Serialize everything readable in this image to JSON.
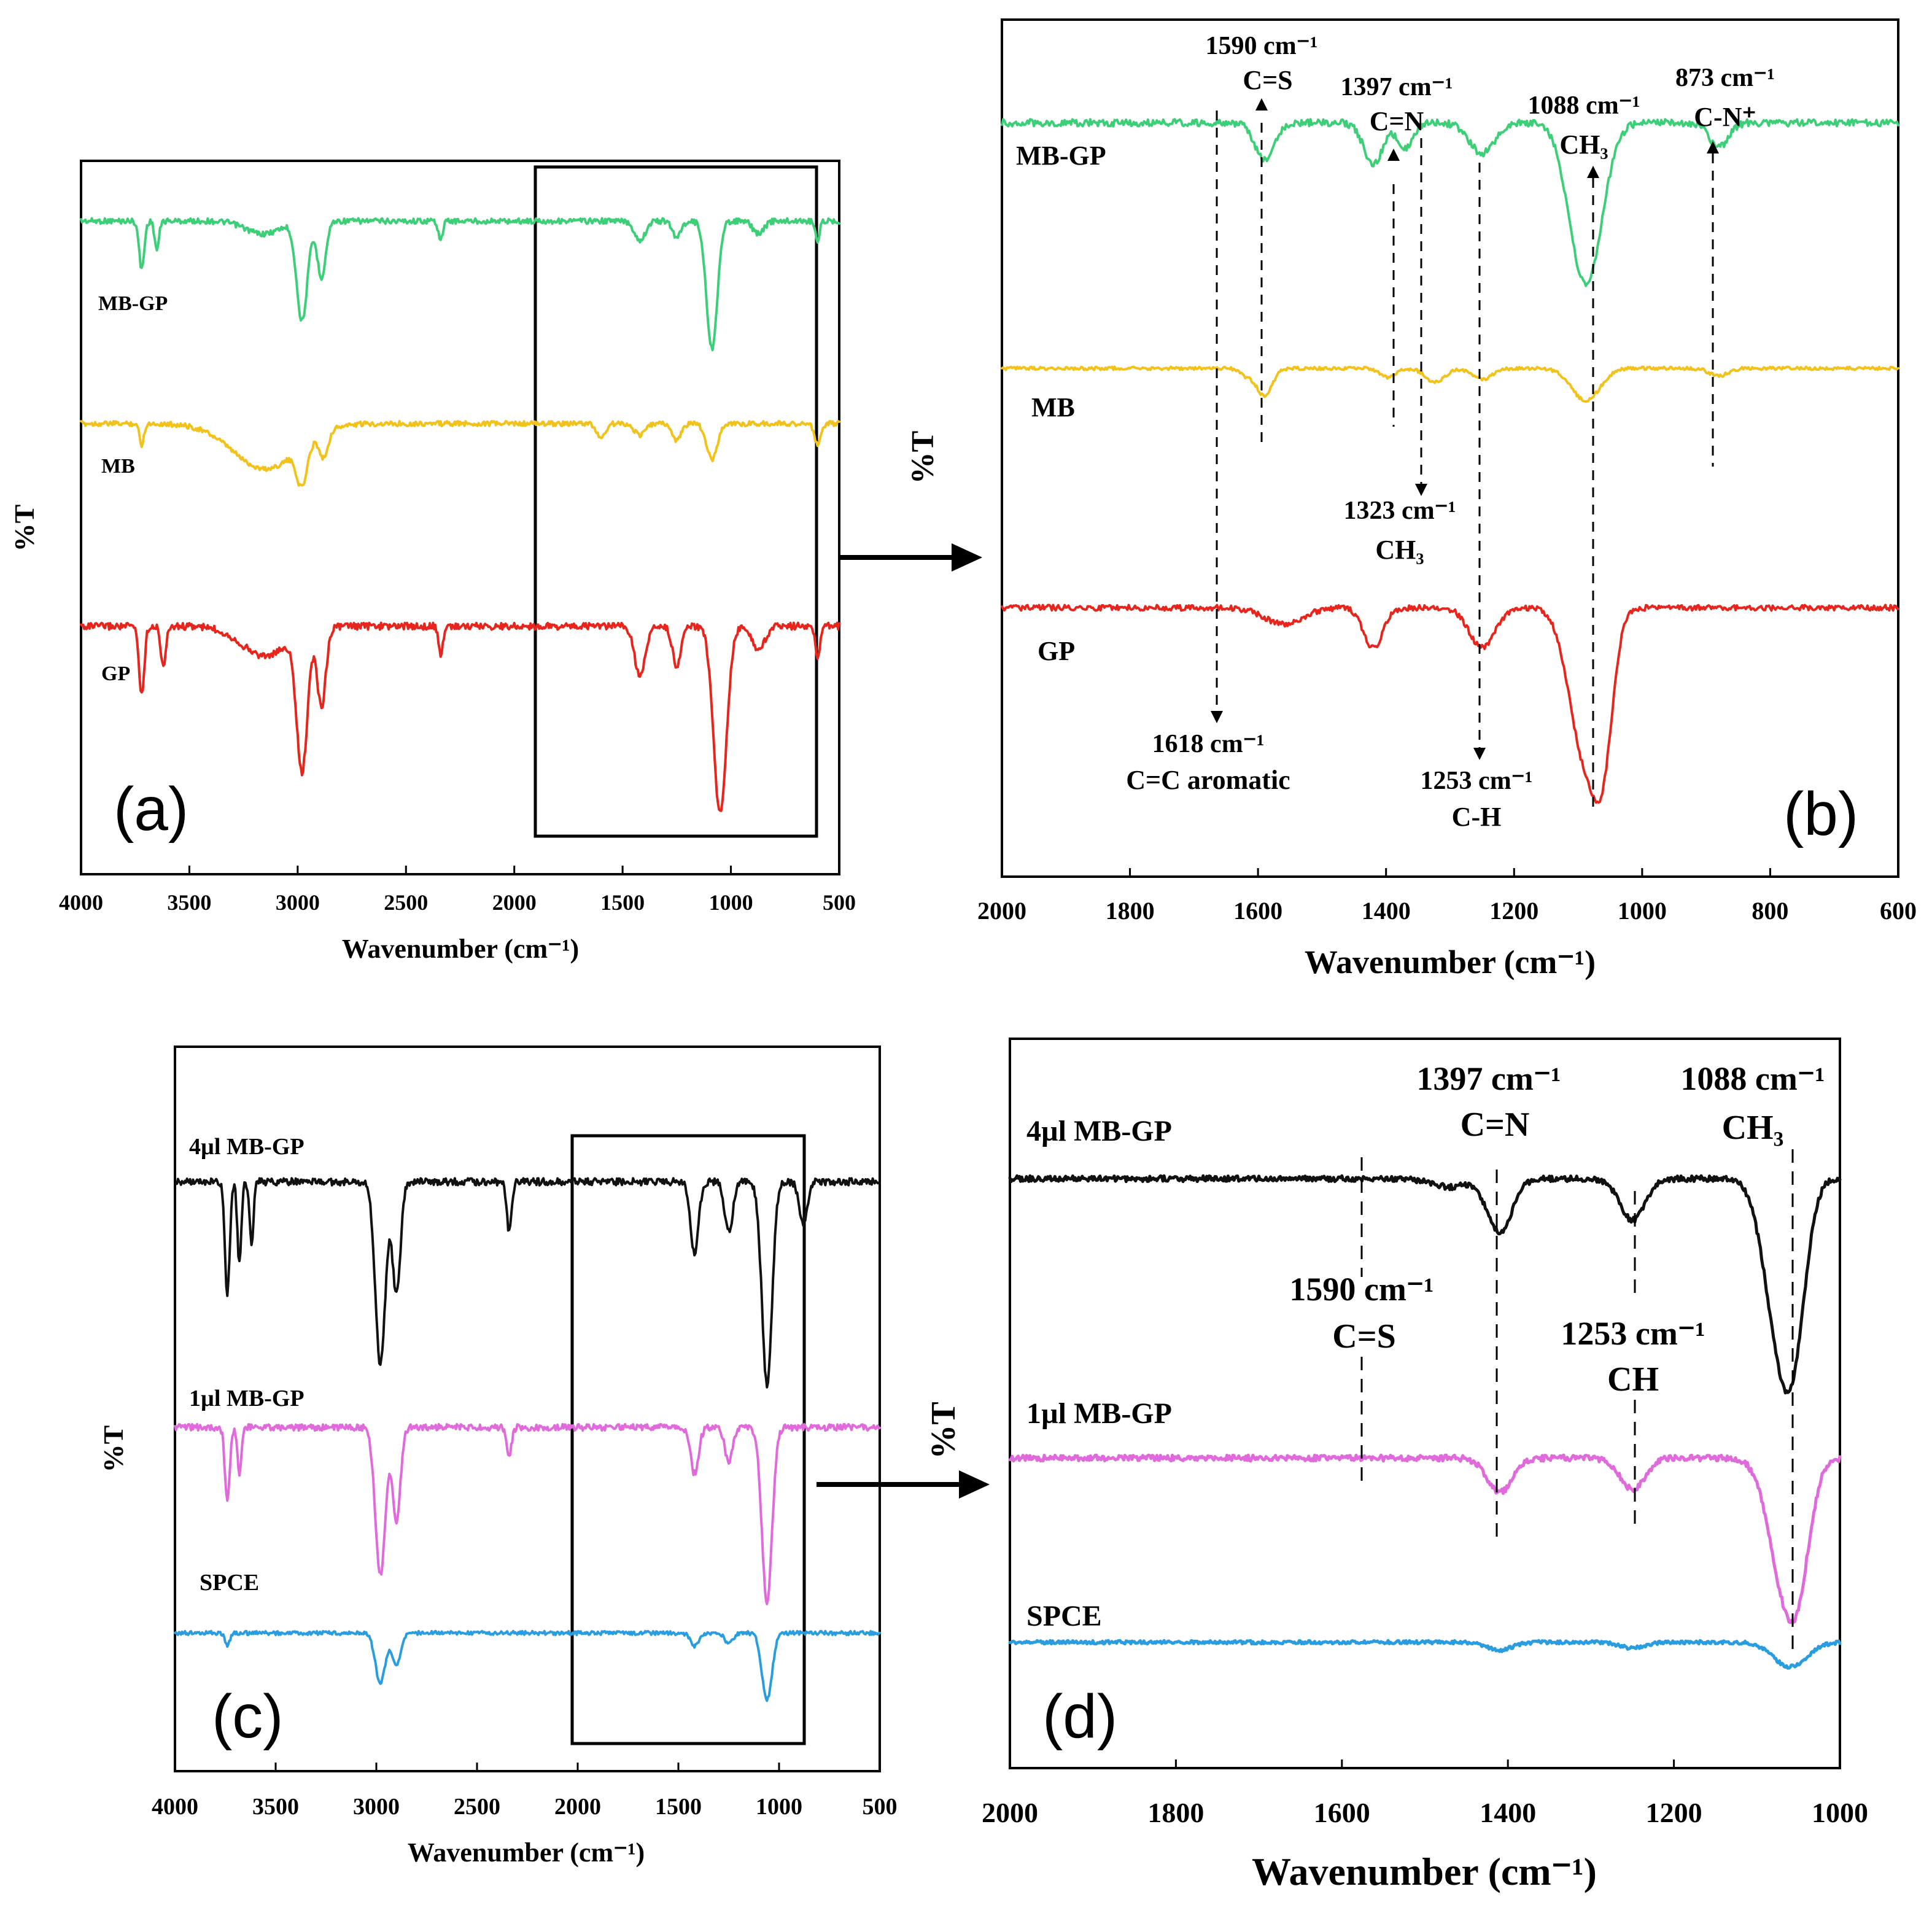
{
  "chart_data": [
    {
      "panel": "(a)",
      "type": "line",
      "xlabel": "Wavenumber (cm⁻¹)",
      "ylabel": "%T",
      "xlim": [
        4000,
        500
      ],
      "xticks": [
        4000,
        3500,
        3000,
        2500,
        2000,
        1500,
        1000,
        500
      ],
      "zoom_region": [
        1900,
        600
      ],
      "series": [
        {
          "name": "MB-GP",
          "color": "#3ccf78",
          "bands": [
            [
              3720,
              0.3,
              12
            ],
            [
              3650,
              0.18,
              10
            ],
            [
              3160,
              0.08,
              80
            ],
            [
              2980,
              0.62,
              25
            ],
            [
              2890,
              0.35,
              20
            ],
            [
              2340,
              0.12,
              10
            ],
            [
              1420,
              0.12,
              25
            ],
            [
              1250,
              0.1,
              20
            ],
            [
              1088,
              0.8,
              25
            ],
            [
              873,
              0.08,
              25
            ],
            [
              600,
              0.12,
              10
            ]
          ]
        },
        {
          "name": "MB",
          "color": "#f2c21a",
          "bands": [
            [
              3720,
              0.15,
              10
            ],
            [
              3150,
              0.32,
              150
            ],
            [
              2980,
              0.28,
              25
            ],
            [
              2880,
              0.18,
              20
            ],
            [
              1600,
              0.1,
              20
            ],
            [
              1420,
              0.08,
              25
            ],
            [
              1250,
              0.12,
              20
            ],
            [
              1088,
              0.25,
              25
            ],
            [
              600,
              0.15,
              15
            ]
          ]
        },
        {
          "name": "GP",
          "color": "#e8251c",
          "bands": [
            [
              3720,
              0.35,
              12
            ],
            [
              3620,
              0.2,
              12
            ],
            [
              3150,
              0.15,
              110
            ],
            [
              2980,
              0.7,
              25
            ],
            [
              2890,
              0.4,
              20
            ],
            [
              2340,
              0.15,
              10
            ],
            [
              1420,
              0.25,
              25
            ],
            [
              1250,
              0.2,
              20
            ],
            [
              1050,
              0.95,
              30
            ],
            [
              873,
              0.12,
              30
            ],
            [
              600,
              0.18,
              10
            ]
          ]
        }
      ]
    },
    {
      "panel": "(b)",
      "type": "line",
      "xlabel": "Wavenumber (cm⁻¹)",
      "ylabel": "%T",
      "xlim": [
        2000,
        600
      ],
      "xticks": [
        2000,
        1800,
        1600,
        1400,
        1200,
        1000,
        800,
        600
      ],
      "series": [
        {
          "name": "MB-GP",
          "color": "#3ccf78",
          "bands": [
            [
              1590,
              0.18,
              15
            ],
            [
              1420,
              0.2,
              15
            ],
            [
              1370,
              0.12,
              12
            ],
            [
              1250,
              0.15,
              20
            ],
            [
              1088,
              0.8,
              25
            ],
            [
              880,
              0.12,
              15
            ]
          ]
        },
        {
          "name": "MB",
          "color": "#f2c21a",
          "bands": [
            [
              1618,
              0.08,
              10
            ],
            [
              1590,
              0.3,
              12
            ],
            [
              1397,
              0.1,
              12
            ],
            [
              1323,
              0.15,
              15
            ],
            [
              1250,
              0.12,
              15
            ],
            [
              1088,
              0.35,
              22
            ],
            [
              880,
              0.08,
              15
            ]
          ]
        },
        {
          "name": "GP",
          "color": "#e8251c",
          "bands": [
            [
              1560,
              0.1,
              30
            ],
            [
              1420,
              0.25,
              15
            ],
            [
              1250,
              0.25,
              20
            ],
            [
              1088,
              0.95,
              25
            ],
            [
              1060,
              0.6,
              15
            ]
          ]
        }
      ],
      "annotations": [
        {
          "wavenumber": 1590,
          "value": "1590 cm⁻¹",
          "group": "C=S"
        },
        {
          "wavenumber": 1397,
          "value": "1397 cm⁻¹",
          "group": "C=N"
        },
        {
          "wavenumber": 1088,
          "value": "1088 cm⁻¹",
          "group": "CH₃"
        },
        {
          "wavenumber": 873,
          "value": "873 cm⁻¹",
          "group": "C-N⁺"
        },
        {
          "wavenumber": 1323,
          "value": "1323 cm⁻¹",
          "group": "CH₃"
        },
        {
          "wavenumber": 1618,
          "value": "1618 cm⁻¹",
          "group": "C=C aromatic"
        },
        {
          "wavenumber": 1253,
          "value": "1253 cm⁻¹",
          "group": "C-H"
        }
      ]
    },
    {
      "panel": "(c)",
      "type": "line",
      "xlabel": "Wavenumber (cm⁻¹)",
      "ylabel": "%T",
      "xlim": [
        4000,
        500
      ],
      "xticks": [
        4000,
        3500,
        3000,
        2500,
        2000,
        1500,
        1000,
        500
      ],
      "zoom_region": [
        2000,
        860
      ],
      "series": [
        {
          "name": "4µl MB-GP",
          "color": "#111111",
          "bands": [
            [
              3740,
              0.55,
              12
            ],
            [
              3680,
              0.4,
              10
            ],
            [
              3620,
              0.3,
              10
            ],
            [
              2980,
              0.9,
              25
            ],
            [
              2900,
              0.55,
              20
            ],
            [
              2340,
              0.25,
              12
            ],
            [
              1420,
              0.35,
              20
            ],
            [
              1250,
              0.25,
              20
            ],
            [
              1060,
              1.0,
              25
            ],
            [
              880,
              0.2,
              20
            ]
          ]
        },
        {
          "name": "1µl MB-GP",
          "color": "#e06adc",
          "bands": [
            [
              3740,
              0.4,
              12
            ],
            [
              3680,
              0.25,
              10
            ],
            [
              2980,
              0.8,
              25
            ],
            [
              2900,
              0.5,
              20
            ],
            [
              2340,
              0.15,
              12
            ],
            [
              1420,
              0.25,
              20
            ],
            [
              1250,
              0.18,
              20
            ],
            [
              1060,
              0.95,
              25
            ]
          ]
        },
        {
          "name": "SPCE",
          "color": "#2a9de0",
          "bands": [
            [
              3740,
              0.12,
              12
            ],
            [
              2980,
              0.45,
              25
            ],
            [
              2900,
              0.3,
              20
            ],
            [
              1420,
              0.12,
              20
            ],
            [
              1250,
              0.1,
              20
            ],
            [
              1060,
              0.6,
              25
            ]
          ]
        }
      ]
    },
    {
      "panel": "(d)",
      "type": "line",
      "xlabel": "Wavenumber (cm⁻¹)",
      "ylabel": "%T",
      "xlim": [
        2000,
        1000
      ],
      "xticks": [
        2000,
        1800,
        1600,
        1400,
        1200,
        1000
      ],
      "series": [
        {
          "name": "4µl MB-GP",
          "color": "#111111",
          "bands": [
            [
              1470,
              0.05,
              20
            ],
            [
              1410,
              0.32,
              15
            ],
            [
              1250,
              0.25,
              15
            ],
            [
              1075,
              0.8,
              18
            ],
            [
              1055,
              0.75,
              15
            ]
          ]
        },
        {
          "name": "1µl MB-GP",
          "color": "#e06adc",
          "bands": [
            [
              1410,
              0.2,
              15
            ],
            [
              1250,
              0.18,
              15
            ],
            [
              1070,
              0.6,
              18
            ],
            [
              1050,
              0.55,
              15
            ]
          ]
        },
        {
          "name": "SPCE",
          "color": "#2a9de0",
          "bands": [
            [
              1410,
              0.08,
              15
            ],
            [
              1250,
              0.06,
              15
            ],
            [
              1060,
              0.25,
              20
            ]
          ]
        }
      ],
      "annotations": [
        {
          "wavenumber": 1397,
          "value": "1397 cm⁻¹",
          "group": "C=N"
        },
        {
          "wavenumber": 1088,
          "value": "1088 cm⁻¹",
          "group": "CH₃"
        },
        {
          "wavenumber": 1590,
          "value": "1590 cm⁻¹",
          "group": "C=S"
        },
        {
          "wavenumber": 1253,
          "value": "1253 cm⁻¹",
          "group": "CH"
        }
      ]
    }
  ]
}
